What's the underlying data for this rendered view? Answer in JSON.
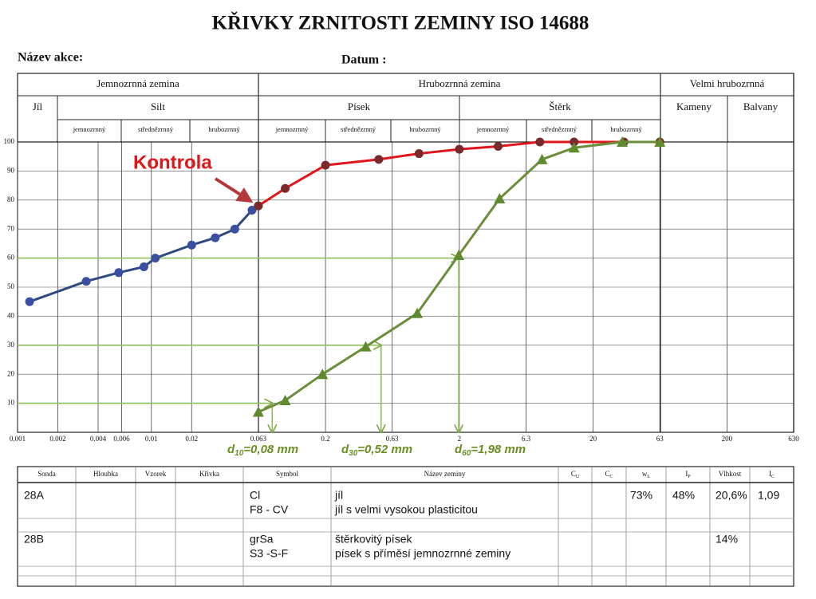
{
  "header": {
    "title": "KŘIVKY ZRNITOSTI ZEMINY ISO 14688",
    "action_label": "Název akce:",
    "date_label": "Datum :"
  },
  "chart_data": {
    "type": "line",
    "x_scale": "log",
    "grid": true,
    "xlim": [
      0.001,
      630
    ],
    "xticks": [
      0.001,
      0.002,
      0.004,
      0.006,
      0.01,
      0.02,
      0.063,
      0.2,
      0.63,
      2,
      6.3,
      20,
      63,
      200,
      630
    ],
    "ylim": [
      0,
      100
    ],
    "yticks": [
      10,
      20,
      30,
      40,
      50,
      60,
      70,
      80,
      90,
      100
    ],
    "soil_classes": {
      "groups": [
        "Jemnozrnná zemina",
        "Hrubozrnná zemina",
        "Velmi hrubozrnná"
      ],
      "fractions": [
        "Jíl",
        "Silt",
        "Písek",
        "Štěrk",
        "Kameny",
        "Balvany"
      ],
      "subfractions": [
        "jemnozrnný",
        "střednězrnný",
        "hrubozrnný",
        "jemnozrnný",
        "střednězrnný",
        "hrubozrnný",
        "jemnozrnný",
        "střednězrnný",
        "hrubozrnný"
      ]
    },
    "series": [
      {
        "color": "#2f4a7e",
        "marker": "circle",
        "marker_color": "#3a4fa0",
        "x": [
          0.00123,
          0.00326,
          0.0057,
          0.0088,
          0.0107,
          0.02,
          0.03,
          0.042,
          0.0565,
          0.063
        ],
        "values": [
          45,
          52,
          55,
          57,
          60,
          64.5,
          67,
          70,
          76.5,
          78
        ]
      },
      {
        "color": "#e0161b",
        "marker": "circle",
        "marker_color": "#7a2a2a",
        "x": [
          0.063,
          0.1,
          0.2,
          0.5,
          1,
          2,
          3.9,
          8,
          14.4,
          34,
          63
        ],
        "values": [
          78,
          84,
          92,
          94,
          96,
          97.5,
          98.5,
          100,
          100,
          100,
          100
        ]
      },
      {
        "color": "#6b8e3a",
        "marker": "triangle",
        "marker_color": "#5f8a2e",
        "x": [
          0.063,
          0.1,
          0.19,
          0.4,
          0.97,
          1.98,
          4,
          8.3,
          14.4,
          33,
          63
        ],
        "values": [
          7,
          11,
          20,
          29.5,
          41,
          61,
          80.5,
          94,
          98,
          100,
          100
        ]
      }
    ],
    "annotation": "Kontrola",
    "guides": [
      {
        "x": 0.08,
        "y": 10,
        "label": {
          "symbol": "d",
          "index": "10",
          "text": "=0,08 mm"
        }
      },
      {
        "x": 0.52,
        "y": 30,
        "label": {
          "symbol": "d",
          "index": "30",
          "text": "=0,52 mm"
        }
      },
      {
        "x": 1.98,
        "y": 60,
        "label": {
          "symbol": "d",
          "index": "60",
          "text": "=1,98 mm"
        }
      }
    ]
  },
  "table": {
    "headers": [
      "Sonda",
      "Hloubka",
      "Vzorek",
      "Křivka",
      "Symbol",
      "Název zeminy",
      {
        "text": "C",
        "sub": "U"
      },
      {
        "text": "C",
        "sub": "C"
      },
      {
        "text": "w",
        "sub": "L"
      },
      {
        "text": "I",
        "sub": "P"
      },
      "Vlhkost",
      {
        "text": "I",
        "sub": "C"
      }
    ],
    "rows": [
      {
        "sonda": "28A",
        "symbol": [
          "Cl",
          "F8 - CV"
        ],
        "name": [
          "jíl",
          "jíl s velmi vysokou plasticitou"
        ],
        "wl": "73%",
        "ip": "48%",
        "moisture": "20,6%",
        "ic": "1,09"
      },
      {
        "sonda": "28B",
        "symbol": [
          "grSa",
          "S3 -S-F"
        ],
        "name": [
          "štěrkovitý písek",
          "písek s příměsí jemnozrnné zeminy"
        ],
        "moisture": "14%"
      }
    ]
  }
}
